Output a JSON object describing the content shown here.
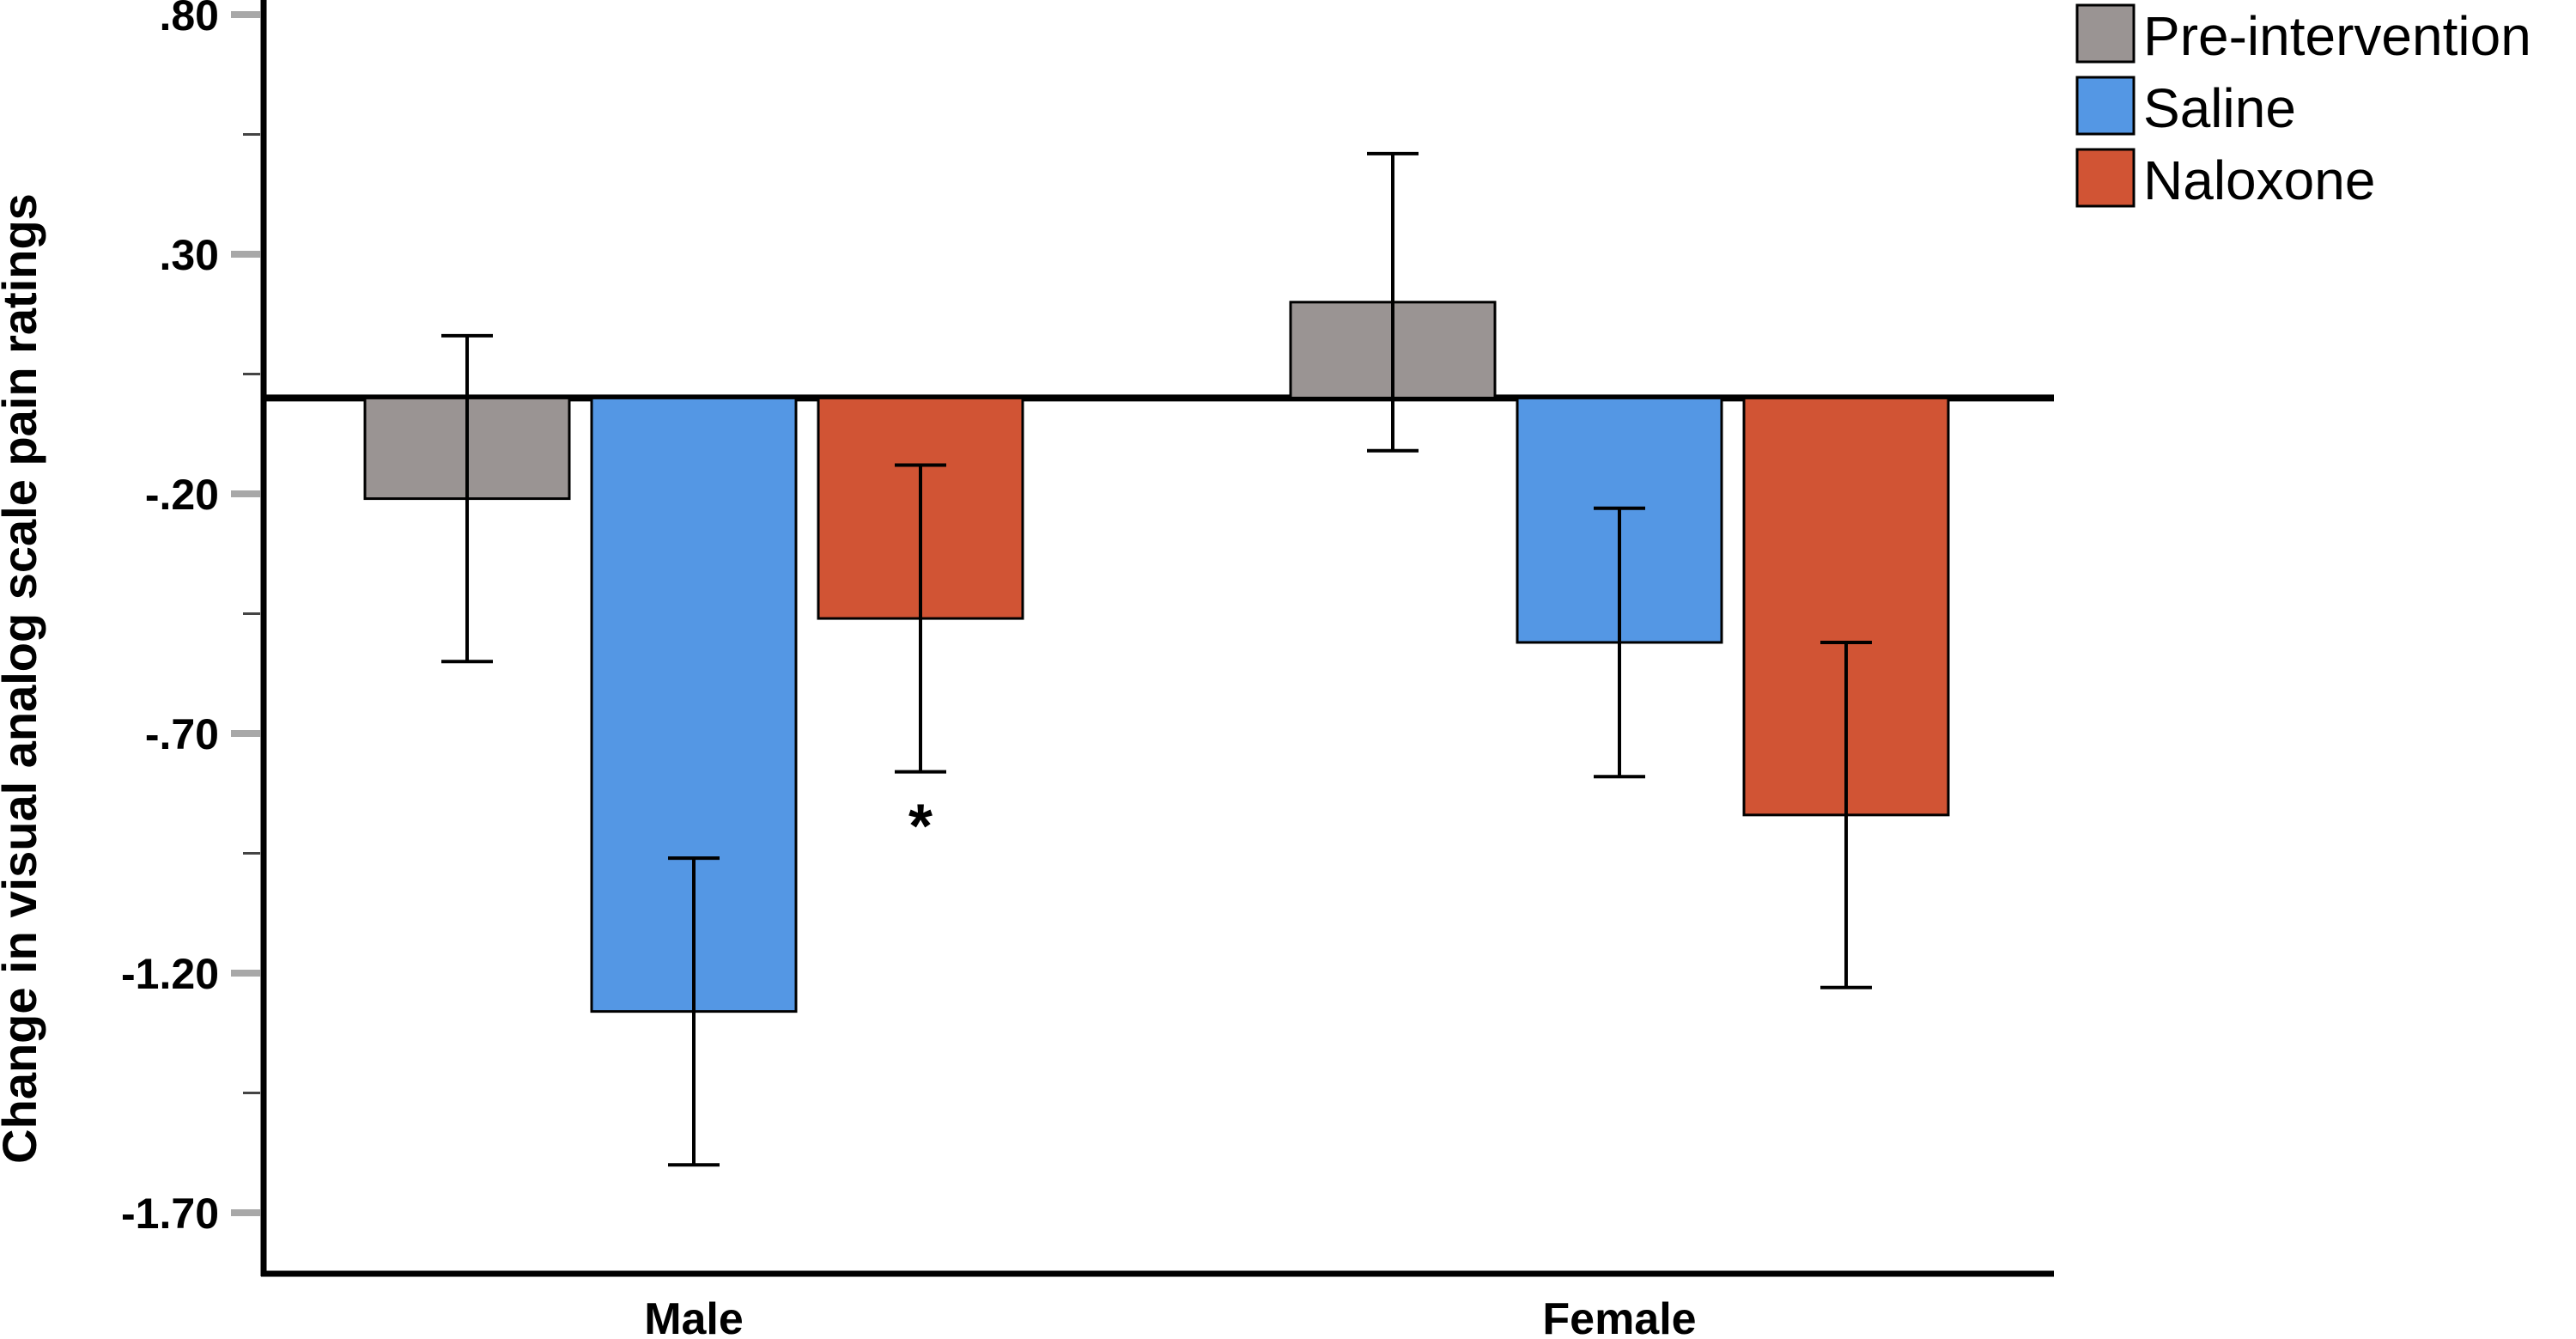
{
  "chart_data": {
    "type": "bar",
    "title": "",
    "xlabel": "",
    "ylabel": "Change in visual analog scale pain ratings",
    "ylim": [
      -1.8,
      0.8
    ],
    "yticks": [
      ".80",
      ".30",
      "-.20",
      "-.70",
      "-1.20",
      "-1.70"
    ],
    "ytick_values": [
      0.8,
      0.3,
      -0.2,
      -0.7,
      -1.2,
      -1.7
    ],
    "minor_tick_step": 0.25,
    "categories": [
      "Male",
      "Female"
    ],
    "series": [
      {
        "name": "Pre-intervention",
        "color": "#9a9493",
        "values": [
          -0.21,
          0.2
        ],
        "error": [
          0.34,
          0.31
        ]
      },
      {
        "name": "Saline",
        "color": "#5497e4",
        "values": [
          -1.28,
          -0.51
        ],
        "error": [
          0.32,
          0.28
        ]
      },
      {
        "name": "Naloxone",
        "color": "#d15434",
        "values": [
          -0.46,
          -0.87
        ],
        "error": [
          0.32,
          0.36
        ]
      }
    ],
    "annotations": [
      {
        "text": "*",
        "category": "Male",
        "series": "Naloxone"
      }
    ],
    "legend": "top-right",
    "grid": false
  }
}
